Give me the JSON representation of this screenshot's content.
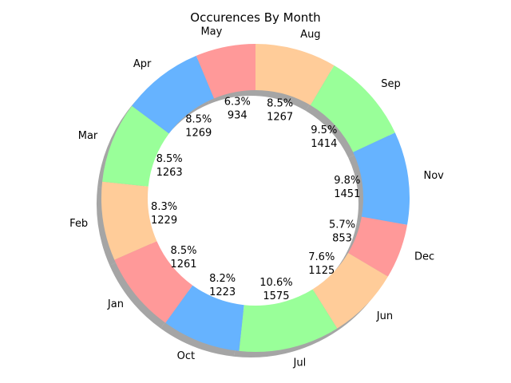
{
  "chart_data": {
    "type": "pie",
    "variant": "donut",
    "title": "Occurences By Month",
    "shadow": true,
    "start_angle_deg": 90,
    "direction": "clockwise",
    "colors": [
      "#ff9999",
      "#66b3ff",
      "#99ff99",
      "#ffcc99"
    ],
    "slices": [
      {
        "label": "Aug",
        "value": 1267,
        "percent_label": "8.5%"
      },
      {
        "label": "Sep",
        "value": 1414,
        "percent_label": "9.5%"
      },
      {
        "label": "Nov",
        "value": 1451,
        "percent_label": "9.8%"
      },
      {
        "label": "Dec",
        "value": 853,
        "percent_label": "5.7%"
      },
      {
        "label": "Jun",
        "value": 1125,
        "percent_label": "7.6%"
      },
      {
        "label": "Jul",
        "value": 1575,
        "percent_label": "10.6%"
      },
      {
        "label": "Oct",
        "value": 1223,
        "percent_label": "8.2%"
      },
      {
        "label": "Jan",
        "value": 1261,
        "percent_label": "8.5%"
      },
      {
        "label": "Feb",
        "value": 1229,
        "percent_label": "8.3%"
      },
      {
        "label": "Mar",
        "value": 1263,
        "percent_label": "8.5%"
      },
      {
        "label": "Apr",
        "value": 1269,
        "percent_label": "8.5%"
      },
      {
        "label": "May",
        "value": 934,
        "percent_label": "6.3%"
      }
    ],
    "slice_colors": [
      "#ffcc99",
      "#99ff99",
      "#66b3ff",
      "#ff9999",
      "#ffcc99",
      "#99ff99",
      "#66b3ff",
      "#ff9999",
      "#ffcc99",
      "#99ff99",
      "#66b3ff",
      "#ff9999"
    ]
  }
}
